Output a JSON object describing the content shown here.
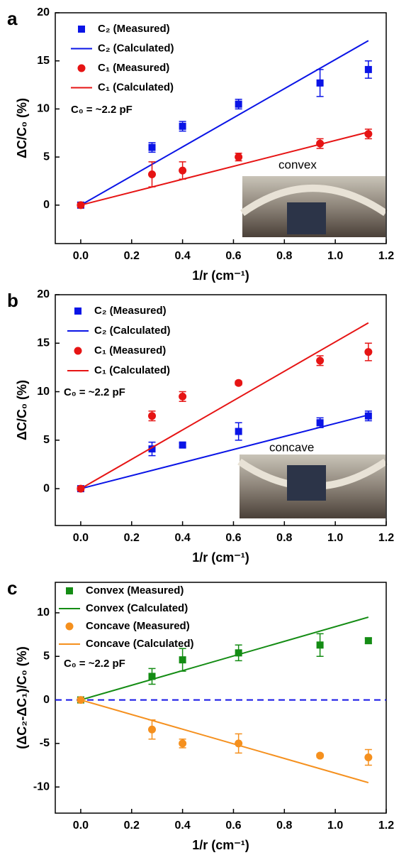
{
  "chart_data": [
    {
      "type": "scatter",
      "panel_label": "a",
      "x_label": "1/r (cm⁻¹)",
      "y_label": "ΔC/C₀ (%)",
      "annotation": "C₀ = ~2.2 pF",
      "inset_label": "convex",
      "xlim": [
        -0.1,
        1.2
      ],
      "ylim": [
        -4,
        20
      ],
      "xticks": [
        {
          "value": 0,
          "label": "0.0"
        },
        0.2,
        0.4,
        0.6,
        0.8,
        {
          "value": 1,
          "label": "1.0"
        },
        1.2
      ],
      "yticks": [
        0,
        5,
        10,
        15,
        20
      ],
      "series": [
        {
          "name": "C₂ (Measured)",
          "kind": "markers",
          "marker": "square",
          "color": "#0a14e6",
          "x": [
            0,
            0.28,
            0.4,
            0.62,
            0.94,
            1.13
          ],
          "values": [
            0,
            6,
            8.2,
            10.5,
            12.7,
            14.1
          ],
          "errors": [
            0.3,
            0.5,
            0.5,
            0.5,
            1.4,
            0.9
          ]
        },
        {
          "name": "C₂ (Calculated)",
          "kind": "line",
          "color": "#0a14e6",
          "x": [
            0,
            1.13
          ],
          "values": [
            0,
            17.1
          ]
        },
        {
          "name": "C₁ (Measured)",
          "kind": "markers",
          "marker": "circle",
          "color": "#e61414",
          "x": [
            0,
            0.28,
            0.4,
            0.62,
            0.94,
            1.13
          ],
          "values": [
            0,
            3.2,
            3.6,
            5,
            6.4,
            7.4
          ],
          "errors": [
            0.2,
            1.3,
            0.9,
            0.4,
            0.5,
            0.5
          ]
        },
        {
          "name": "C₁ (Calculated)",
          "kind": "line",
          "color": "#e61414",
          "x": [
            0,
            1.13
          ],
          "values": [
            0,
            7.6
          ]
        }
      ]
    },
    {
      "type": "scatter",
      "panel_label": "b",
      "x_label": "1/r (cm⁻¹)",
      "y_label": "ΔC/C₀ (%)",
      "annotation": "C₀ = ~2.2 pF",
      "inset_label": "concave",
      "xlim": [
        -0.1,
        1.2
      ],
      "ylim": [
        -3.8,
        20
      ],
      "xticks": [
        {
          "value": 0,
          "label": "0.0"
        },
        0.2,
        0.4,
        0.6,
        0.8,
        {
          "value": 1,
          "label": "1.0"
        },
        1.2
      ],
      "yticks": [
        0,
        5,
        10,
        15,
        20
      ],
      "series": [
        {
          "name": "C₂ (Measured)",
          "kind": "markers",
          "marker": "square",
          "color": "#0a14e6",
          "x": [
            0,
            0.28,
            0.4,
            0.62,
            0.94,
            1.13
          ],
          "values": [
            0,
            4.1,
            4.5,
            5.9,
            6.8,
            7.5
          ],
          "errors": [
            0.2,
            0.7,
            0.2,
            0.9,
            0.5,
            0.5
          ]
        },
        {
          "name": "C₂ (Calculated)",
          "kind": "line",
          "color": "#0a14e6",
          "x": [
            0,
            1.13
          ],
          "values": [
            0,
            7.6
          ]
        },
        {
          "name": "C₁ (Measured)",
          "kind": "markers",
          "marker": "circle",
          "color": "#e61414",
          "x": [
            0,
            0.28,
            0.4,
            0.62,
            0.94,
            1.13
          ],
          "values": [
            0,
            7.5,
            9.5,
            10.9,
            13.2,
            14.1
          ],
          "errors": [
            0.2,
            0.5,
            0.5,
            0.2,
            0.5,
            0.9
          ]
        },
        {
          "name": "C₁ (Calculated)",
          "kind": "line",
          "color": "#e61414",
          "x": [
            0,
            1.13
          ],
          "values": [
            0,
            17.1
          ]
        }
      ]
    },
    {
      "type": "scatter",
      "panel_label": "c",
      "x_label": "1/r (cm⁻¹)",
      "y_label": "(ΔC₂-ΔC₁)/C₀ (%)",
      "annotation": "C₀ = ~2.2 pF",
      "xlim": [
        -0.1,
        1.2
      ],
      "ylim": [
        -13,
        13.5
      ],
      "xticks": [
        {
          "value": 0,
          "label": "0.0"
        },
        0.2,
        0.4,
        0.6,
        0.8,
        {
          "value": 1,
          "label": "1.0"
        },
        1.2
      ],
      "yticks": [
        -10,
        -5,
        0,
        5,
        10
      ],
      "reference_line": {
        "y": 0,
        "color": "#1414e6",
        "style": "dashed"
      },
      "series": [
        {
          "name": "Convex (Measured)",
          "kind": "markers",
          "marker": "square",
          "color": "#148c14",
          "x": [
            0,
            0.28,
            0.4,
            0.62,
            0.94,
            1.13
          ],
          "values": [
            0,
            2.7,
            4.6,
            5.4,
            6.3,
            6.8
          ],
          "errors": [
            0.2,
            0.9,
            1.3,
            0.9,
            1.3,
            0.3
          ]
        },
        {
          "name": "Convex (Calculated)",
          "kind": "line",
          "color": "#148c14",
          "x": [
            0,
            1.13
          ],
          "values": [
            0,
            9.5
          ]
        },
        {
          "name": "Concave (Measured)",
          "kind": "markers",
          "marker": "circle",
          "color": "#f5901e",
          "x": [
            0,
            0.28,
            0.4,
            0.62,
            0.94,
            1.13
          ],
          "values": [
            0,
            -3.4,
            -5,
            -5,
            -6.4,
            -6.6
          ],
          "errors": [
            0.2,
            1.1,
            0.5,
            1.1,
            0.2,
            0.9
          ]
        },
        {
          "name": "Concave (Calculated)",
          "kind": "line",
          "color": "#f5901e",
          "x": [
            0,
            1.13
          ],
          "values": [
            0,
            -9.5
          ]
        }
      ]
    }
  ]
}
